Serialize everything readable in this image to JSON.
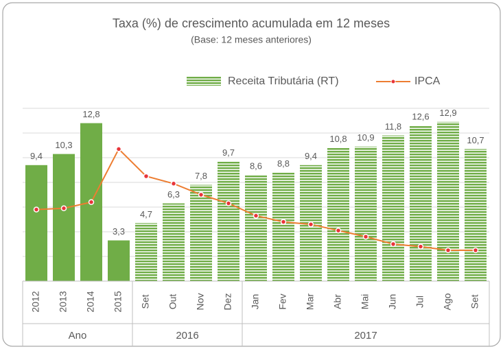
{
  "chart_data": {
    "type": "bar",
    "title": "Taxa (%) de crescimento acumulada em 12 meses",
    "subtitle": "(Base: 12 meses anteriores)",
    "categories": [
      "2012",
      "2013",
      "2014",
      "2015",
      "Set",
      "Out",
      "Nov",
      "Dez",
      "Jan",
      "Fev",
      "Mar",
      "Abr",
      "Mai",
      "Jun",
      "Jul",
      "Ago",
      "Set"
    ],
    "groups": [
      {
        "label": "Ano",
        "size": 4
      },
      {
        "label": "2016",
        "size": 4
      },
      {
        "label": "2017",
        "size": 9
      }
    ],
    "series": [
      {
        "name": "Receita Tributária (RT)",
        "color": "#70ad47",
        "values": [
          9.4,
          10.3,
          12.8,
          3.3,
          4.7,
          6.3,
          7.8,
          9.7,
          8.6,
          8.8,
          9.4,
          10.8,
          10.9,
          11.8,
          12.6,
          12.9,
          10.7
        ],
        "value_labels": [
          "9,4",
          "10,3",
          "12,8",
          "3,3",
          "4,7",
          "6,3",
          "7,8",
          "9,7",
          "8,6",
          "8,8",
          "9,4",
          "10,8",
          "10,9",
          "11,8",
          "12,6",
          "12,9",
          "10,7"
        ],
        "bar_fills": [
          "solid",
          "solid",
          "solid",
          "solid",
          "striped",
          "striped",
          "striped",
          "striped",
          "striped",
          "striped",
          "striped",
          "striped",
          "striped",
          "striped",
          "striped",
          "striped",
          "striped"
        ]
      },
      {
        "name": "IPCA",
        "type": "line",
        "color": "#ed7d31",
        "marker_color": "#e8353a",
        "values": [
          5.8,
          5.9,
          6.4,
          10.7,
          8.5,
          7.9,
          7.0,
          6.3,
          5.3,
          4.8,
          4.6,
          4.1,
          3.6,
          3.0,
          2.8,
          2.5,
          2.5
        ]
      }
    ],
    "ylim": [
      0,
      14
    ],
    "yticks": [
      0,
      2,
      4,
      6,
      8,
      10,
      12,
      14
    ],
    "grid": true
  }
}
